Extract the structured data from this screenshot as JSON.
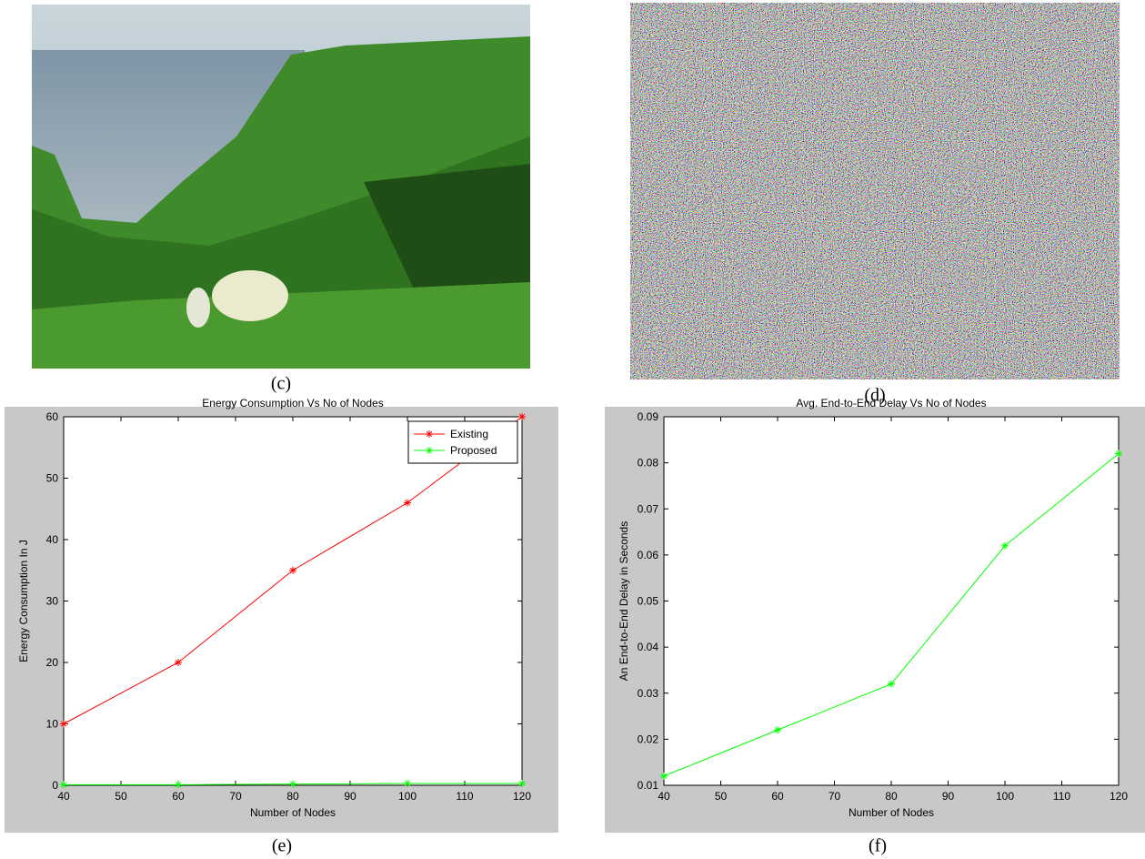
{
  "captions": [
    "(c)",
    "(d)",
    "(e)",
    "(f)"
  ],
  "chart_data": [
    {
      "type": "line",
      "title": "Energy Consumption Vs No of Nodes",
      "x_label": "Number of Nodes",
      "y_label": "Energy Consumption In J",
      "x": [
        40,
        60,
        80,
        100,
        120
      ],
      "series": [
        {
          "name": "Existing",
          "color": "#ff0000",
          "values": [
            10,
            20,
            35,
            46,
            60
          ]
        },
        {
          "name": "Proposed",
          "color": "#00ff00",
          "values": [
            0.1,
            0.1,
            0.2,
            0.3,
            0.3
          ]
        }
      ],
      "xlim": [
        40,
        120
      ],
      "xticks": [
        40,
        50,
        60,
        70,
        80,
        90,
        100,
        110,
        120
      ],
      "ylim": [
        0,
        60
      ],
      "yticks": [
        0,
        10,
        20,
        30,
        40,
        50,
        60
      ],
      "legend": "upper right"
    },
    {
      "type": "line",
      "title": "Avg. End-to-End Delay Vs No of Nodes",
      "x_label": "Number of Nodes",
      "y_label": "An End-to-End Delay in Seconds",
      "x": [
        40,
        60,
        80,
        100,
        120
      ],
      "series": [
        {
          "color": "#00ff00",
          "values": [
            0.012,
            0.022,
            0.032,
            0.062,
            0.082
          ]
        }
      ],
      "xlim": [
        40,
        120
      ],
      "xticks": [
        40,
        50,
        60,
        70,
        80,
        90,
        100,
        110,
        120
      ],
      "ylim": [
        0.01,
        0.09
      ],
      "yticks": [
        0.01,
        0.02,
        0.03,
        0.04,
        0.05,
        0.06,
        0.07,
        0.08,
        0.09
      ]
    }
  ]
}
